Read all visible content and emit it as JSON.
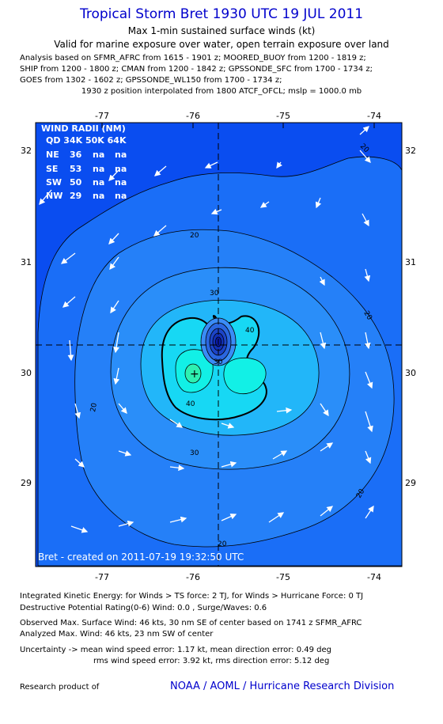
{
  "header": {
    "title": "Tropical Storm Bret 1930 UTC 19 JUL 2011",
    "subtitle": "Max 1-min sustained surface winds (kt)",
    "validity": "Valid for marine exposure over water, open terrain exposure over land",
    "analysis_lines": [
      "Analysis based on SFMR_AFRC from 1615 - 1901 z; MOORED_BUOY from 1200 - 1819 z;",
      "SHIP from 1200 - 1800 z; CMAN from 1200 - 1842 z; GPSSONDE_SFC from 1700 - 1734 z;",
      "GOES from 1302 - 1602 z; GPSSONDE_WL150 from 1700 - 1734 z;"
    ],
    "position_note": "1930 z position interpolated from 1800 ATCF_OFCL; mslp = 1000.0 mb"
  },
  "map": {
    "x_ticks": [
      "-77",
      "-76",
      "-75",
      "-74"
    ],
    "y_ticks": [
      "32",
      "31",
      "30",
      "29"
    ],
    "contour_labels": [
      "20",
      "20",
      "20",
      "20",
      "20",
      "30",
      "30",
      "30",
      "40",
      "40",
      "20"
    ],
    "credit": "Bret - created on 2011-07-19 19:32:50 UTC",
    "colors": {
      "outer": "#0a4df0",
      "level20": "#1a6ef7",
      "level30": "#2a8ef9",
      "level35": "#22b6f9",
      "level40": "#17d8f4",
      "level45": "#12f0e6",
      "peak": "#2ef0b0",
      "center_dark": "#0a1aa8"
    }
  },
  "wind_radii": {
    "title": "WIND RADII (NM)",
    "header": "QD 34K 50K 64K",
    "rows": [
      {
        "quadrant": "NE",
        "k34": "36",
        "k50": "na",
        "k64": "na"
      },
      {
        "quadrant": "SE",
        "k34": "53",
        "k50": "na",
        "k64": "na"
      },
      {
        "quadrant": "SW",
        "k34": "50",
        "k50": "na",
        "k64": "na"
      },
      {
        "quadrant": "NW",
        "k34": "29",
        "k50": "na",
        "k64": "na"
      }
    ]
  },
  "footer": {
    "ike": "Integrated Kinetic Energy:  for Winds > TS force: 2 TJ,  for Winds > Hurricane Force: 0 TJ",
    "dpr": "Destructive Potential Rating(0-6)   Wind: 0.0 , Surge/Waves: 0.6",
    "obs_max": "Observed Max. Surface Wind: 46 kts, 30 nm SE of center based on 1741 z SFMR_AFRC",
    "analyzed_max": "Analyzed Max. Wind: 46 kts, 23 nm SW of center",
    "uncertainty1": "Uncertainty -> mean wind speed error: 1.17 kt,   mean direction error: 0.49 deg",
    "uncertainty2": "rms wind speed error: 3.92 kt,   rms direction error: 5.12 deg",
    "research": "Research product of",
    "noaa": "NOAA / AOML / Hurricane Research Division"
  }
}
